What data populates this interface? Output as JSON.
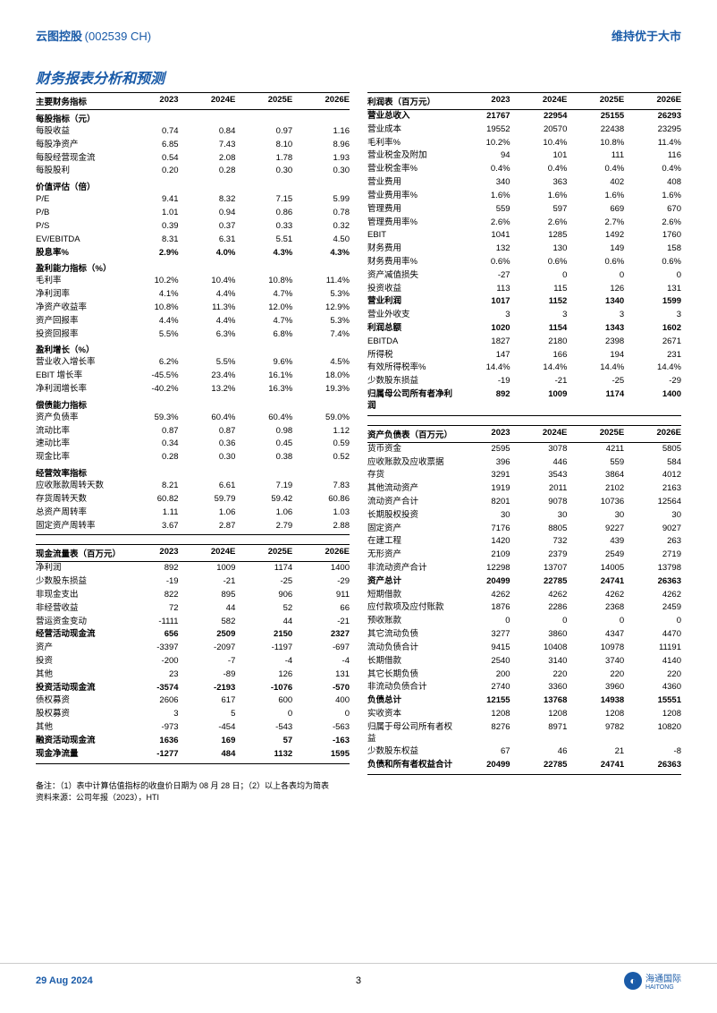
{
  "header": {
    "company": "云图控股",
    "ticker": "(002539 CH)",
    "rating": "维持优于大市"
  },
  "title": "财务报表分析和预测",
  "years": [
    "2023",
    "2024E",
    "2025E",
    "2026E"
  ],
  "left": {
    "s1": {
      "title": "主要财务指标"
    },
    "s2": {
      "title": "每股指标（元）",
      "rows": [
        {
          "l": "每股收益",
          "v": [
            "0.74",
            "0.84",
            "0.97",
            "1.16"
          ]
        },
        {
          "l": "每股净资产",
          "v": [
            "6.85",
            "7.43",
            "8.10",
            "8.96"
          ]
        },
        {
          "l": "每股经营现金流",
          "v": [
            "0.54",
            "2.08",
            "1.78",
            "1.93"
          ]
        },
        {
          "l": "每股股利",
          "v": [
            "0.20",
            "0.28",
            "0.30",
            "0.30"
          ]
        }
      ]
    },
    "s3": {
      "title": "价值评估（倍）",
      "rows": [
        {
          "l": "P/E",
          "v": [
            "9.41",
            "8.32",
            "7.15",
            "5.99"
          ]
        },
        {
          "l": "P/B",
          "v": [
            "1.01",
            "0.94",
            "0.86",
            "0.78"
          ]
        },
        {
          "l": "P/S",
          "v": [
            "0.39",
            "0.37",
            "0.33",
            "0.32"
          ]
        },
        {
          "l": "EV/EBITDA",
          "v": [
            "8.31",
            "6.31",
            "5.51",
            "4.50"
          ]
        },
        {
          "l": "股息率%",
          "v": [
            "2.9%",
            "4.0%",
            "4.3%",
            "4.3%"
          ],
          "bold": true
        }
      ]
    },
    "s4": {
      "title": "盈利能力指标（%）",
      "rows": [
        {
          "l": "毛利率",
          "v": [
            "10.2%",
            "10.4%",
            "10.8%",
            "11.4%"
          ]
        },
        {
          "l": "净利润率",
          "v": [
            "4.1%",
            "4.4%",
            "4.7%",
            "5.3%"
          ]
        },
        {
          "l": "净资产收益率",
          "v": [
            "10.8%",
            "11.3%",
            "12.0%",
            "12.9%"
          ]
        },
        {
          "l": "资产回报率",
          "v": [
            "4.4%",
            "4.4%",
            "4.7%",
            "5.3%"
          ]
        },
        {
          "l": "投资回报率",
          "v": [
            "5.5%",
            "6.3%",
            "6.8%",
            "7.4%"
          ]
        }
      ]
    },
    "s5": {
      "title": "盈利增长（%）",
      "rows": [
        {
          "l": "营业收入增长率",
          "v": [
            "6.2%",
            "5.5%",
            "9.6%",
            "4.5%"
          ]
        },
        {
          "l": "EBIT 增长率",
          "v": [
            "-45.5%",
            "23.4%",
            "16.1%",
            "18.0%"
          ]
        },
        {
          "l": "净利润增长率",
          "v": [
            "-40.2%",
            "13.2%",
            "16.3%",
            "19.3%"
          ]
        }
      ]
    },
    "s6": {
      "title": "偿债能力指标",
      "rows": [
        {
          "l": "资产负债率",
          "v": [
            "59.3%",
            "60.4%",
            "60.4%",
            "59.0%"
          ]
        },
        {
          "l": "流动比率",
          "v": [
            "0.87",
            "0.87",
            "0.98",
            "1.12"
          ]
        },
        {
          "l": "速动比率",
          "v": [
            "0.34",
            "0.36",
            "0.45",
            "0.59"
          ]
        },
        {
          "l": "现金比率",
          "v": [
            "0.28",
            "0.30",
            "0.38",
            "0.52"
          ]
        }
      ]
    },
    "s7": {
      "title": "经营效率指标",
      "rows": [
        {
          "l": "应收账款周转天数",
          "v": [
            "8.21",
            "6.61",
            "7.19",
            "7.83"
          ]
        },
        {
          "l": "存货周转天数",
          "v": [
            "60.82",
            "59.79",
            "59.42",
            "60.86"
          ]
        },
        {
          "l": "总资产周转率",
          "v": [
            "1.11",
            "1.06",
            "1.06",
            "1.03"
          ]
        },
        {
          "l": "固定资产周转率",
          "v": [
            "3.67",
            "2.87",
            "2.79",
            "2.88"
          ]
        }
      ]
    },
    "cf": {
      "title": "现金流量表（百万元）",
      "rows": [
        {
          "l": "净利润",
          "v": [
            "892",
            "1009",
            "1174",
            "1400"
          ]
        },
        {
          "l": "少数股东损益",
          "v": [
            "-19",
            "-21",
            "-25",
            "-29"
          ]
        },
        {
          "l": "非现金支出",
          "v": [
            "822",
            "895",
            "906",
            "911"
          ]
        },
        {
          "l": "非经营收益",
          "v": [
            "72",
            "44",
            "52",
            "66"
          ]
        },
        {
          "l": "营运资金变动",
          "v": [
            "-1111",
            "582",
            "44",
            "-21"
          ]
        },
        {
          "l": "经营活动现金流",
          "v": [
            "656",
            "2509",
            "2150",
            "2327"
          ],
          "bold": true
        },
        {
          "l": "资产",
          "v": [
            "-3397",
            "-2097",
            "-1197",
            "-697"
          ]
        },
        {
          "l": "投资",
          "v": [
            "-200",
            "-7",
            "-4",
            "-4"
          ]
        },
        {
          "l": "其他",
          "v": [
            "23",
            "-89",
            "126",
            "131"
          ]
        },
        {
          "l": "投资活动现金流",
          "v": [
            "-3574",
            "-2193",
            "-1076",
            "-570"
          ],
          "bold": true
        },
        {
          "l": "债权募资",
          "v": [
            "2606",
            "617",
            "600",
            "400"
          ]
        },
        {
          "l": "股权募资",
          "v": [
            "3",
            "5",
            "0",
            "0"
          ]
        },
        {
          "l": "其他",
          "v": [
            "-973",
            "-454",
            "-543",
            "-563"
          ]
        },
        {
          "l": "融资活动现金流",
          "v": [
            "1636",
            "169",
            "57",
            "-163"
          ],
          "bold": true
        },
        {
          "l": "现金净流量",
          "v": [
            "-1277",
            "484",
            "1132",
            "1595"
          ],
          "bold": true
        }
      ]
    }
  },
  "right": {
    "is": {
      "title": "利润表（百万元）",
      "rows": [
        {
          "l": "营业总收入",
          "v": [
            "21767",
            "22954",
            "25155",
            "26293"
          ],
          "bold": true
        },
        {
          "l": "营业成本",
          "v": [
            "19552",
            "20570",
            "22438",
            "23295"
          ]
        },
        {
          "l": "毛利率%",
          "v": [
            "10.2%",
            "10.4%",
            "10.8%",
            "11.4%"
          ]
        },
        {
          "l": "营业税金及附加",
          "v": [
            "94",
            "101",
            "111",
            "116"
          ]
        },
        {
          "l": "营业税金率%",
          "v": [
            "0.4%",
            "0.4%",
            "0.4%",
            "0.4%"
          ]
        },
        {
          "l": "营业费用",
          "v": [
            "340",
            "363",
            "402",
            "408"
          ]
        },
        {
          "l": "营业费用率%",
          "v": [
            "1.6%",
            "1.6%",
            "1.6%",
            "1.6%"
          ]
        },
        {
          "l": "管理费用",
          "v": [
            "559",
            "597",
            "669",
            "670"
          ]
        },
        {
          "l": "管理费用率%",
          "v": [
            "2.6%",
            "2.6%",
            "2.7%",
            "2.6%"
          ]
        },
        {
          "l": "EBIT",
          "v": [
            "1041",
            "1285",
            "1492",
            "1760"
          ]
        },
        {
          "l": "财务费用",
          "v": [
            "132",
            "130",
            "149",
            "158"
          ]
        },
        {
          "l": "财务费用率%",
          "v": [
            "0.6%",
            "0.6%",
            "0.6%",
            "0.6%"
          ]
        },
        {
          "l": "资产减值损失",
          "v": [
            "-27",
            "0",
            "0",
            "0"
          ]
        },
        {
          "l": "投资收益",
          "v": [
            "113",
            "115",
            "126",
            "131"
          ]
        },
        {
          "l": "营业利润",
          "v": [
            "1017",
            "1152",
            "1340",
            "1599"
          ],
          "bold": true
        },
        {
          "l": "营业外收支",
          "v": [
            "3",
            "3",
            "3",
            "3"
          ]
        },
        {
          "l": "利润总额",
          "v": [
            "1020",
            "1154",
            "1343",
            "1602"
          ],
          "bold": true
        },
        {
          "l": "EBITDA",
          "v": [
            "1827",
            "2180",
            "2398",
            "2671"
          ]
        },
        {
          "l": "所得税",
          "v": [
            "147",
            "166",
            "194",
            "231"
          ]
        },
        {
          "l": "有效所得税率%",
          "v": [
            "14.4%",
            "14.4%",
            "14.4%",
            "14.4%"
          ]
        },
        {
          "l": "少数股东损益",
          "v": [
            "-19",
            "-21",
            "-25",
            "-29"
          ]
        },
        {
          "l": "归属母公司所有者净利润",
          "v": [
            "892",
            "1009",
            "1174",
            "1400"
          ],
          "bold": true
        }
      ]
    },
    "bs": {
      "title": "资产负债表（百万元）",
      "rows": [
        {
          "l": "货币资金",
          "v": [
            "2595",
            "3078",
            "4211",
            "5805"
          ]
        },
        {
          "l": "应收账款及应收票据",
          "v": [
            "396",
            "446",
            "559",
            "584"
          ]
        },
        {
          "l": "存货",
          "v": [
            "3291",
            "3543",
            "3864",
            "4012"
          ]
        },
        {
          "l": "其他流动资产",
          "v": [
            "1919",
            "2011",
            "2102",
            "2163"
          ]
        },
        {
          "l": "流动资产合计",
          "v": [
            "8201",
            "9078",
            "10736",
            "12564"
          ]
        },
        {
          "l": "长期股权投资",
          "v": [
            "30",
            "30",
            "30",
            "30"
          ]
        },
        {
          "l": "固定资产",
          "v": [
            "7176",
            "8805",
            "9227",
            "9027"
          ]
        },
        {
          "l": "在建工程",
          "v": [
            "1420",
            "732",
            "439",
            "263"
          ]
        },
        {
          "l": "无形资产",
          "v": [
            "2109",
            "2379",
            "2549",
            "2719"
          ]
        },
        {
          "l": "非流动资产合计",
          "v": [
            "12298",
            "13707",
            "14005",
            "13798"
          ]
        },
        {
          "l": "资产总计",
          "v": [
            "20499",
            "22785",
            "24741",
            "26363"
          ],
          "bold": true
        },
        {
          "l": "短期借款",
          "v": [
            "4262",
            "4262",
            "4262",
            "4262"
          ]
        },
        {
          "l": "应付款项及应付账款",
          "v": [
            "1876",
            "2286",
            "2368",
            "2459"
          ]
        },
        {
          "l": "预收账款",
          "v": [
            "0",
            "0",
            "0",
            "0"
          ]
        },
        {
          "l": "其它流动负债",
          "v": [
            "3277",
            "3860",
            "4347",
            "4470"
          ]
        },
        {
          "l": "流动负债合计",
          "v": [
            "9415",
            "10408",
            "10978",
            "11191"
          ]
        },
        {
          "l": "长期借款",
          "v": [
            "2540",
            "3140",
            "3740",
            "4140"
          ]
        },
        {
          "l": "其它长期负债",
          "v": [
            "200",
            "220",
            "220",
            "220"
          ]
        },
        {
          "l": "非流动负债合计",
          "v": [
            "2740",
            "3360",
            "3960",
            "4360"
          ]
        },
        {
          "l": "负债总计",
          "v": [
            "12155",
            "13768",
            "14938",
            "15551"
          ],
          "bold": true
        },
        {
          "l": "实收资本",
          "v": [
            "1208",
            "1208",
            "1208",
            "1208"
          ]
        },
        {
          "l": "归属于母公司所有者权益",
          "v": [
            "8276",
            "8971",
            "9782",
            "10820"
          ]
        },
        {
          "l": "少数股东权益",
          "v": [
            "67",
            "46",
            "21",
            "-8"
          ]
        },
        {
          "l": "负债和所有者权益合计",
          "v": [
            "20499",
            "22785",
            "24741",
            "26363"
          ],
          "bold": true
        }
      ]
    }
  },
  "notes": {
    "n1": "备注：（1）表中计算估值指标的收盘价日期为 08 月 28 日；（2）以上各表均为简表",
    "n2": "资料来源：公司年报（2023），HTI"
  },
  "footer": {
    "date": "29 Aug 2024",
    "page": "3",
    "firm": "海通国际",
    "firm_en": "HAITONG"
  }
}
